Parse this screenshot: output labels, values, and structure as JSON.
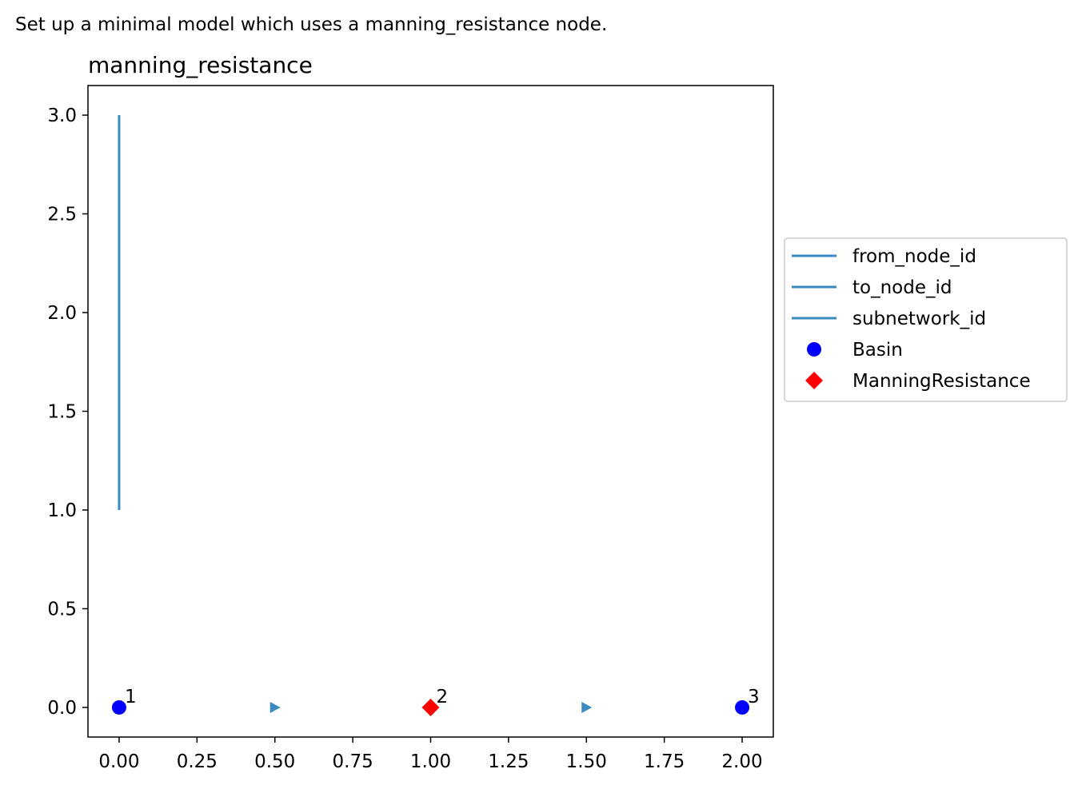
{
  "caption": "Set up a minimal model which uses a manning_resistance node.",
  "chart_data": {
    "type": "scatter",
    "title": "manning_resistance",
    "xlabel": "",
    "ylabel": "",
    "xlim": [
      -0.1,
      2.1
    ],
    "ylim": [
      -0.15,
      3.15
    ],
    "xticks": [
      "0.00",
      "0.25",
      "0.50",
      "0.75",
      "1.00",
      "1.25",
      "1.50",
      "1.75",
      "2.00"
    ],
    "yticks": [
      "0.0",
      "0.5",
      "1.0",
      "1.5",
      "2.0",
      "2.5",
      "3.0"
    ],
    "grid": false,
    "legend_position": "outside right",
    "lines": [
      {
        "x": [
          0,
          0
        ],
        "y": [
          1,
          3
        ],
        "color": "#3a8ac0"
      }
    ],
    "series": [
      {
        "name": "from_node_id",
        "type": "line",
        "color": "#3a8ac0"
      },
      {
        "name": "to_node_id",
        "type": "line",
        "color": "#3a8ac0"
      },
      {
        "name": "subnetwork_id",
        "type": "line",
        "color": "#3a8ac0"
      },
      {
        "name": "Basin",
        "type": "scatter",
        "marker": "circle",
        "color": "#0000ff",
        "points": [
          {
            "x": 0,
            "y": 0,
            "label": "1"
          },
          {
            "x": 2,
            "y": 0,
            "label": "3"
          }
        ]
      },
      {
        "name": "ManningResistance",
        "type": "scatter",
        "marker": "diamond",
        "color": "#ff0000",
        "points": [
          {
            "x": 1,
            "y": 0,
            "label": "2"
          }
        ]
      }
    ],
    "edge_markers": {
      "marker": "triangle-right",
      "color": "#3a8ac0",
      "points": [
        {
          "x": 0.5,
          "y": 0
        },
        {
          "x": 1.5,
          "y": 0
        }
      ]
    }
  }
}
